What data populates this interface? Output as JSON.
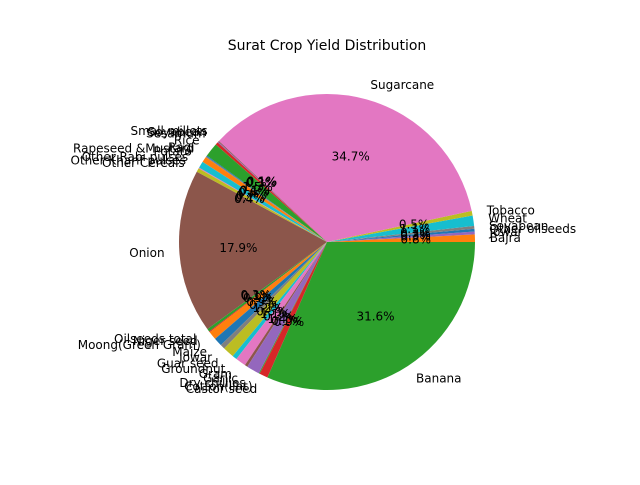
{
  "chart_data": {
    "type": "pie",
    "title": "Surat Crop Yield Distribution",
    "start_angle_deg": 0,
    "direction": "counterclockwise",
    "autopct_format": "%1.1f%%",
    "slices": [
      {
        "label": "Bajra",
        "value": 0.8,
        "color": "#ff7f0e"
      },
      {
        "label": "Jowar",
        "value": 0.3,
        "color": "#9467bd"
      },
      {
        "label": "Other oilseeds",
        "value": 0.3,
        "color": "#1f77b4"
      },
      {
        "label": "Soyabean",
        "value": 0.3,
        "color": "#7f7f7f"
      },
      {
        "label": "Wheat",
        "value": 1.1,
        "color": "#17becf"
      },
      {
        "label": "Tobacco",
        "value": 0.5,
        "color": "#bcbd22"
      },
      {
        "label": "Sugarcane",
        "value": 33.9,
        "color": "#e377c2"
      },
      {
        "label": "Small millets",
        "value": 0.1,
        "color": "#8c564b"
      },
      {
        "label": "Soyabean",
        "value": 0.1,
        "color": "#9467bd"
      },
      {
        "label": "Sesamum",
        "value": 0.3,
        "color": "#d62728"
      },
      {
        "label": "Rice",
        "value": 1.5,
        "color": "#2ca02c"
      },
      {
        "label": "Ragi",
        "value": 0.1,
        "color": "#1f77b4"
      },
      {
        "label": "Rapeseed &Mustard",
        "value": 0.1,
        "color": "#7f7f7f"
      },
      {
        "label": "Potato",
        "value": 0.6,
        "color": "#ff7f0e"
      },
      {
        "label": "Other Rabi pulses",
        "value": 0.7,
        "color": "#17becf"
      },
      {
        "label": "Other Kharif pulses",
        "value": 0.1,
        "color": "#e377c2"
      },
      {
        "label": "Other Cereals",
        "value": 0.4,
        "color": "#bcbd22"
      },
      {
        "label": "Onion",
        "value": 17.5,
        "color": "#8c564b"
      },
      {
        "label": "Oilseeds total",
        "value": 0.3,
        "color": "#2ca02c"
      },
      {
        "label": "Niger seed",
        "value": 0.1,
        "color": "#d62728"
      },
      {
        "label": "Moong(Green Gram)",
        "value": 0.9,
        "color": "#ff7f0e"
      },
      {
        "label": "Maize",
        "value": 0.9,
        "color": "#1f77b4"
      },
      {
        "label": "Jowar",
        "value": 0.5,
        "color": "#7f7f7f"
      },
      {
        "label": "Guar seed",
        "value": 1.2,
        "color": "#bcbd22"
      },
      {
        "label": "Groundnut",
        "value": 0.5,
        "color": "#17becf"
      },
      {
        "label": "Gram",
        "value": 1.1,
        "color": "#e377c2"
      },
      {
        "label": "Garlic",
        "value": 0.3,
        "color": "#8c564b"
      },
      {
        "label": "Dry chillies",
        "value": 1.4,
        "color": "#9467bd"
      },
      {
        "label": "Cotton(lint)",
        "value": 0.1,
        "color": "#2ca02c"
      },
      {
        "label": "Castor seed",
        "value": 0.9,
        "color": "#d62728"
      },
      {
        "label": "Banana",
        "value": 30.9,
        "color": "#2ca02c"
      }
    ]
  }
}
